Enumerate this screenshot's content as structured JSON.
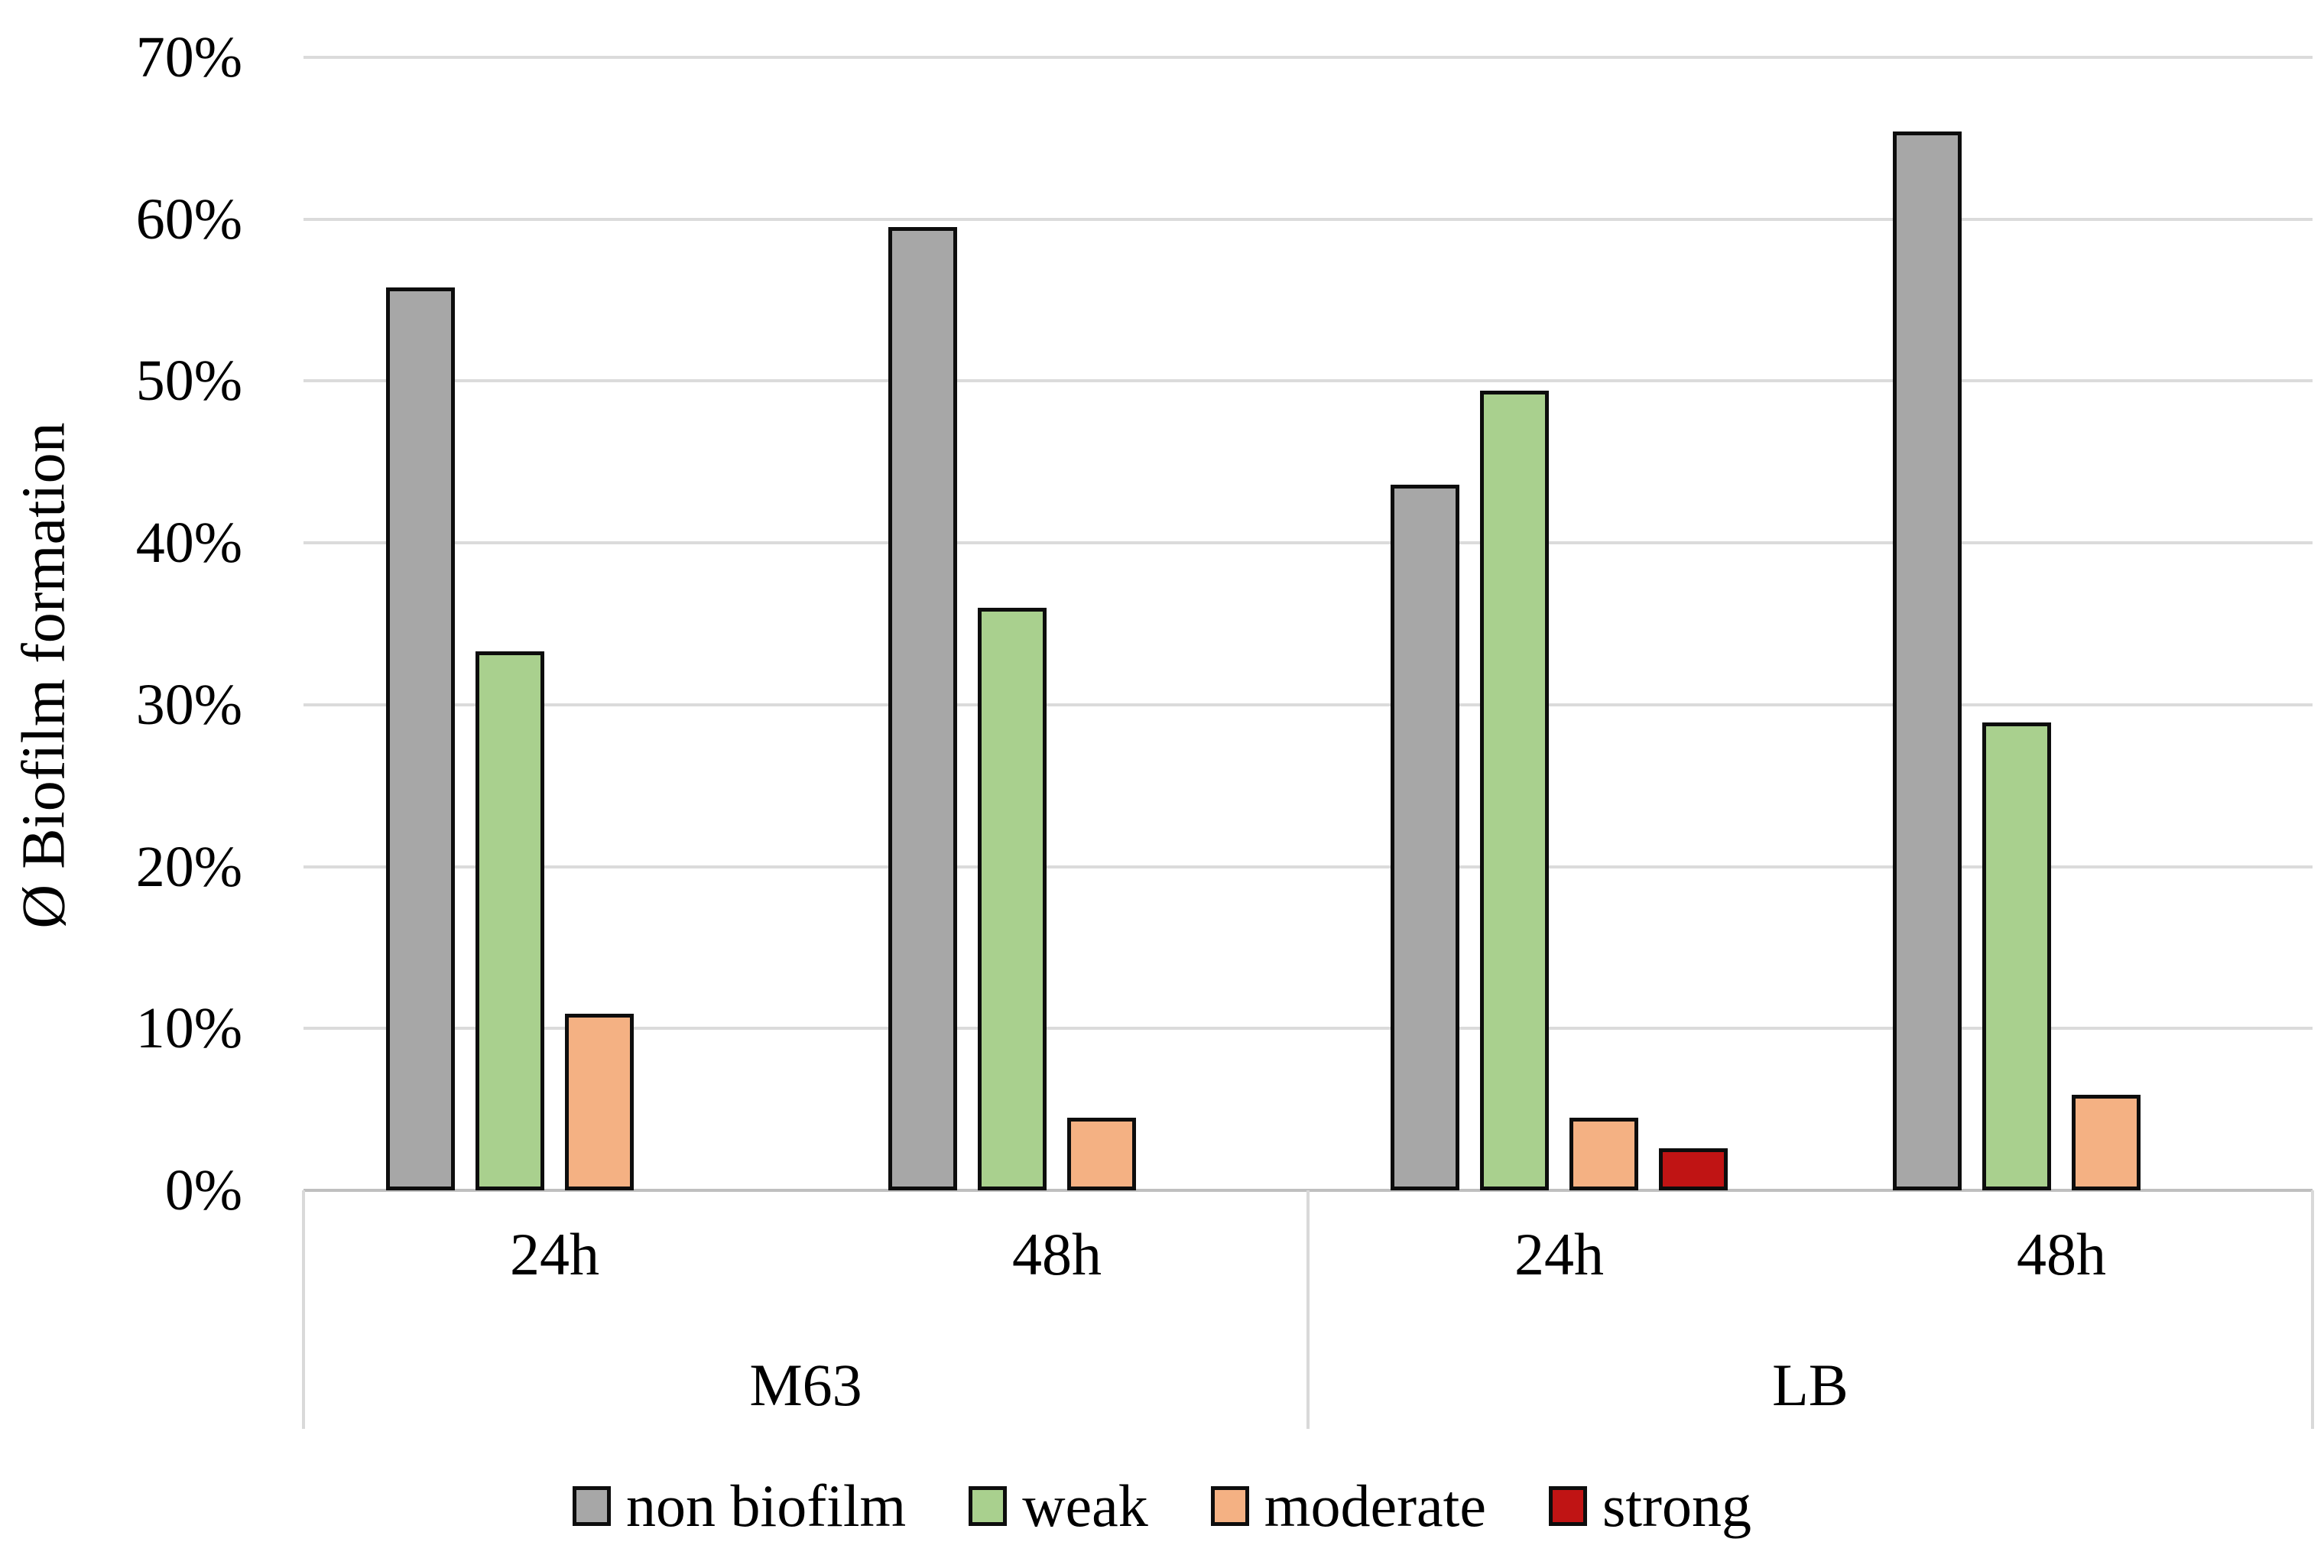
{
  "chart_data": {
    "type": "bar",
    "title": "",
    "xlabel": "",
    "ylabel": "Ø Biofilm formation",
    "ylim": [
      0,
      70
    ],
    "y_tick_step": 10,
    "y_tick_labels": [
      "0%",
      "10%",
      "20%",
      "30%",
      "40%",
      "50%",
      "60%",
      "70%"
    ],
    "grid": true,
    "legend_position": "bottom",
    "categories": [
      {
        "time": "24h",
        "medium": "M63"
      },
      {
        "time": "48h",
        "medium": "M63"
      },
      {
        "time": "24h",
        "medium": "LB"
      },
      {
        "time": "48h",
        "medium": "LB"
      }
    ],
    "medium_groups": [
      {
        "label": "M63",
        "category_indexes": [
          0,
          1
        ]
      },
      {
        "label": "LB",
        "category_indexes": [
          2,
          3
        ]
      }
    ],
    "series": [
      {
        "name": "non biofilm",
        "color": "#A7A7A7",
        "values": [
          55.8,
          59.5,
          43.6,
          65.4
        ]
      },
      {
        "name": "weak",
        "color": "#A9D08E",
        "values": [
          33.3,
          36.0,
          49.4,
          28.9
        ]
      },
      {
        "name": "moderate",
        "color": "#F4B183",
        "values": [
          10.9,
          4.5,
          4.5,
          5.9
        ]
      },
      {
        "name": "strong",
        "color": "#C01414",
        "values": [
          0,
          0,
          2.6,
          0
        ]
      }
    ],
    "colors": {
      "bar_border": "#0D0D0D",
      "gridline": "#DBDBDB",
      "axis_line": "#BFBFBF",
      "category_divider": "#D9D9D9",
      "text": "#000000"
    }
  }
}
